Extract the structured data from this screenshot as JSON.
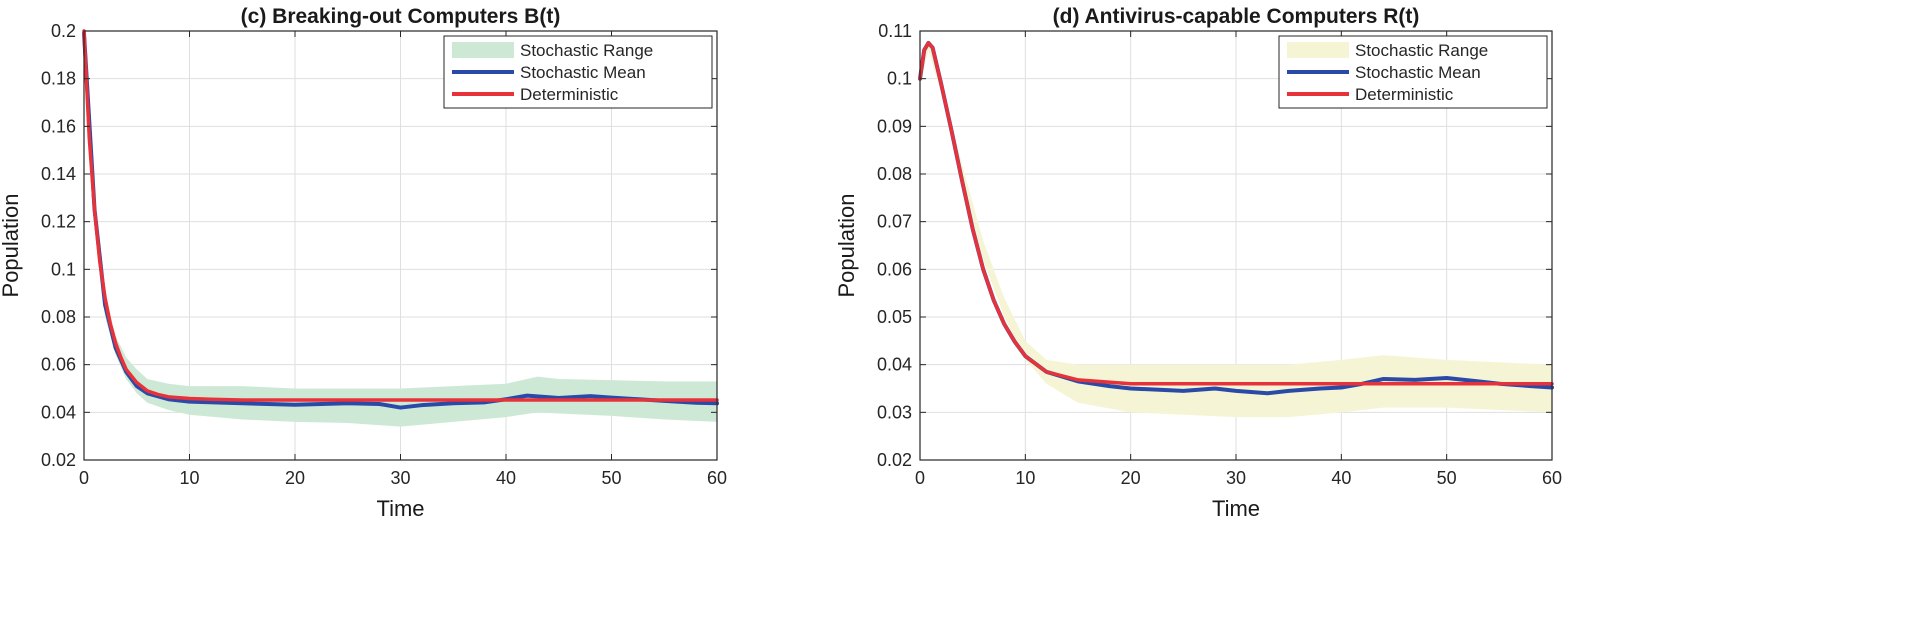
{
  "chart_data": [
    {
      "type": "line",
      "title": "(c) Breaking-out Computers B(t)",
      "xlabel": "Time",
      "ylabel": "Population",
      "xlim": [
        0,
        60
      ],
      "ylim": [
        0.02,
        0.2
      ],
      "xticks": [
        0,
        10,
        20,
        30,
        40,
        50,
        60
      ],
      "yticks": [
        0.02,
        0.04,
        0.06,
        0.08,
        0.1,
        0.12,
        0.14,
        0.16,
        0.18,
        0.2
      ],
      "xtick_labels": [
        "0",
        "10",
        "20",
        "30",
        "40",
        "50",
        "60"
      ],
      "ytick_labels": [
        "0.02",
        "0.04",
        "0.06",
        "0.08",
        "0.1",
        "0.12",
        "0.14",
        "0.16",
        "0.18",
        "0.2"
      ],
      "grid": true,
      "legend_position": "top-right",
      "legend": [
        "Stochastic Range",
        "Stochastic Mean",
        "Deterministic"
      ],
      "colors": {
        "range": "#cde9d6",
        "mean": "#2b4aa8",
        "deterministic": "#e8323a"
      },
      "series": [
        {
          "name": "Stochastic Range",
          "kind": "band",
          "x": [
            0,
            1,
            2,
            3,
            4,
            5,
            6,
            8,
            10,
            15,
            20,
            25,
            30,
            35,
            40,
            43,
            45,
            50,
            55,
            60
          ],
          "lower": [
            0.196,
            0.12,
            0.08,
            0.064,
            0.054,
            0.048,
            0.044,
            0.041,
            0.039,
            0.037,
            0.036,
            0.0355,
            0.034,
            0.036,
            0.038,
            0.04,
            0.0395,
            0.0385,
            0.037,
            0.036
          ],
          "upper": [
            0.2,
            0.13,
            0.09,
            0.072,
            0.063,
            0.058,
            0.054,
            0.052,
            0.051,
            0.051,
            0.05,
            0.05,
            0.05,
            0.051,
            0.052,
            0.055,
            0.054,
            0.0535,
            0.053,
            0.053
          ]
        },
        {
          "name": "Stochastic Mean",
          "kind": "line",
          "x": [
            0,
            1,
            2,
            3,
            4,
            5,
            6,
            8,
            10,
            15,
            20,
            25,
            28,
            30,
            32,
            35,
            38,
            40,
            42,
            45,
            48,
            50,
            55,
            58,
            60
          ],
          "y": [
            0.199,
            0.125,
            0.085,
            0.067,
            0.057,
            0.051,
            0.048,
            0.0455,
            0.0445,
            0.0438,
            0.0432,
            0.0438,
            0.0435,
            0.042,
            0.043,
            0.0438,
            0.0442,
            0.0455,
            0.047,
            0.046,
            0.0468,
            0.0462,
            0.0448,
            0.044,
            0.0438
          ]
        },
        {
          "name": "Deterministic",
          "kind": "line",
          "x": [
            0,
            0.5,
            1,
            1.5,
            2,
            2.5,
            3,
            3.5,
            4,
            5,
            6,
            7,
            8,
            10,
            12,
            15,
            20,
            30,
            40,
            50,
            60
          ],
          "y": [
            0.2,
            0.155,
            0.125,
            0.103,
            0.088,
            0.077,
            0.069,
            0.063,
            0.058,
            0.0525,
            0.049,
            0.0475,
            0.0465,
            0.0458,
            0.0455,
            0.0452,
            0.0452,
            0.0452,
            0.0452,
            0.0452,
            0.0452
          ]
        }
      ]
    },
    {
      "type": "line",
      "title": "(d) Antivirus-capable Computers R(t)",
      "xlabel": "Time",
      "ylabel": "Population",
      "xlim": [
        0,
        60
      ],
      "ylim": [
        0.02,
        0.11
      ],
      "xticks": [
        0,
        10,
        20,
        30,
        40,
        50,
        60
      ],
      "yticks": [
        0.02,
        0.03,
        0.04,
        0.05,
        0.06,
        0.07,
        0.08,
        0.09,
        0.1,
        0.11
      ],
      "xtick_labels": [
        "0",
        "10",
        "20",
        "30",
        "40",
        "50",
        "60"
      ],
      "ytick_labels": [
        "0.02",
        "0.03",
        "0.04",
        "0.05",
        "0.06",
        "0.07",
        "0.08",
        "0.09",
        "0.1",
        "0.11"
      ],
      "grid": true,
      "legend_position": "top-right",
      "legend": [
        "Stochastic Range",
        "Stochastic Mean",
        "Deterministic"
      ],
      "colors": {
        "range": "#f5f5d5",
        "mean": "#2b4aa8",
        "deterministic": "#e8323a"
      },
      "series": [
        {
          "name": "Stochastic Range",
          "kind": "band",
          "x": [
            0,
            0.8,
            2,
            4,
            6,
            8,
            10,
            12,
            15,
            20,
            25,
            30,
            35,
            40,
            44,
            50,
            55,
            60
          ],
          "lower": [
            0.099,
            0.106,
            0.097,
            0.079,
            0.062,
            0.05,
            0.041,
            0.036,
            0.032,
            0.03,
            0.0295,
            0.029,
            0.029,
            0.03,
            0.031,
            0.031,
            0.0305,
            0.03
          ],
          "upper": [
            0.101,
            0.108,
            0.099,
            0.082,
            0.066,
            0.054,
            0.045,
            0.041,
            0.04,
            0.04,
            0.04,
            0.04,
            0.04,
            0.041,
            0.042,
            0.041,
            0.0405,
            0.04
          ]
        },
        {
          "name": "Stochastic Mean",
          "kind": "line",
          "x": [
            0,
            0.4,
            0.8,
            1.2,
            2,
            3,
            4,
            5,
            6,
            7,
            8,
            9,
            10,
            12,
            15,
            18,
            20,
            25,
            28,
            30,
            33,
            35,
            38,
            40,
            42,
            44,
            47,
            50,
            53,
            55,
            58,
            60
          ],
          "y": [
            0.1,
            0.106,
            0.1075,
            0.1065,
            0.099,
            0.089,
            0.0785,
            0.0685,
            0.06,
            0.0535,
            0.0485,
            0.0448,
            0.0418,
            0.0385,
            0.0365,
            0.0355,
            0.035,
            0.0345,
            0.035,
            0.0345,
            0.034,
            0.0345,
            0.035,
            0.0352,
            0.036,
            0.037,
            0.0368,
            0.0372,
            0.0365,
            0.036,
            0.0355,
            0.0352
          ]
        },
        {
          "name": "Deterministic",
          "kind": "line",
          "x": [
            0,
            0.4,
            0.8,
            1.2,
            2,
            3,
            4,
            5,
            6,
            7,
            8,
            9,
            10,
            12,
            15,
            20,
            30,
            40,
            50,
            60
          ],
          "y": [
            0.1,
            0.106,
            0.1075,
            0.1065,
            0.099,
            0.089,
            0.0785,
            0.0685,
            0.06,
            0.0535,
            0.0485,
            0.0448,
            0.0418,
            0.0385,
            0.0368,
            0.036,
            0.036,
            0.036,
            0.036,
            0.036
          ]
        }
      ]
    }
  ]
}
